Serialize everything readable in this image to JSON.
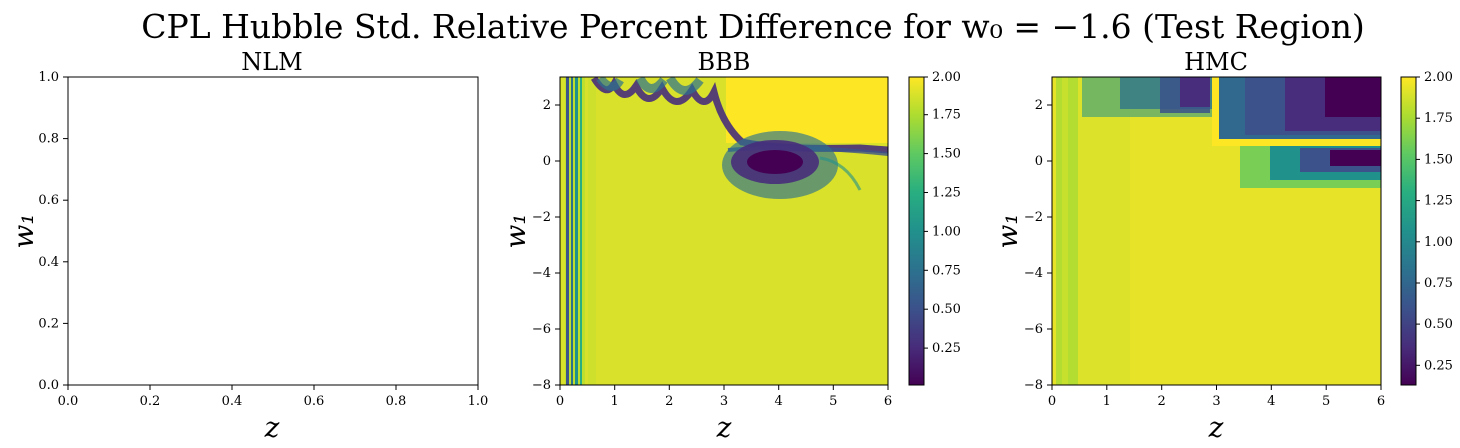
{
  "figure": {
    "suptitle": "CPL Hubble Std. Relative Percent Difference for w₀ = −1.6 (Test Region)"
  },
  "chart_data": [
    {
      "type": "heatmap",
      "title": "NLM",
      "xlabel": "z",
      "ylabel": "w₁",
      "xlim": [
        0,
        1
      ],
      "ylim": [
        0,
        1
      ],
      "xticks": [
        "0.0",
        "0.2",
        "0.4",
        "0.6",
        "0.8",
        "1.0"
      ],
      "yticks": [
        "0.0",
        "0.2",
        "0.4",
        "0.6",
        "0.8",
        "1.0"
      ],
      "empty": true
    },
    {
      "type": "heatmap",
      "title": "BBB",
      "xlabel": "z",
      "ylabel": "w₁",
      "xlim": [
        0,
        6
      ],
      "ylim": [
        -8,
        3
      ],
      "xticks": [
        "0",
        "1",
        "2",
        "3",
        "4",
        "5",
        "6"
      ],
      "yticks": [
        "−8",
        "−6",
        "−4",
        "−2",
        "0",
        "2"
      ],
      "colormap": "viridis",
      "colorbar": {
        "vmin": 0.02,
        "vmax": 2.0,
        "ticks": [
          "0.25",
          "0.50",
          "0.75",
          "1.00",
          "1.25",
          "1.50",
          "1.75",
          "2.00"
        ]
      },
      "background_value": 1.8,
      "features": [
        {
          "kind": "dark_band",
          "z": [
            0.1,
            0.45
          ],
          "w1": [
            -8,
            3
          ],
          "min_value": 0.4
        },
        {
          "kind": "saturated_block",
          "z": [
            3.0,
            6.0
          ],
          "w1": [
            0.7,
            3.0
          ],
          "value": 2.0
        },
        {
          "kind": "minimum_lobe",
          "center": [
            4.1,
            -0.1
          ],
          "min_value": 0.05
        },
        {
          "kind": "dark_arc",
          "z": [
            0.6,
            3.0
          ],
          "w1": [
            1.8,
            3.0
          ],
          "min_value": 0.1
        }
      ]
    },
    {
      "type": "heatmap",
      "title": "HMC",
      "xlabel": "z",
      "ylabel": "w₁",
      "xlim": [
        0,
        6
      ],
      "ylim": [
        -8,
        3
      ],
      "xticks": [
        "0",
        "1",
        "2",
        "3",
        "4",
        "5",
        "6"
      ],
      "yticks": [
        "−8",
        "−6",
        "−4",
        "−2",
        "0",
        "2"
      ],
      "colormap": "viridis",
      "colorbar": {
        "vmin": 0.13,
        "vmax": 2.0,
        "ticks": [
          "0.25",
          "0.50",
          "0.75",
          "1.00",
          "1.25",
          "1.50",
          "1.75",
          "2.00"
        ]
      },
      "background_value": 1.9,
      "features": [
        {
          "kind": "bright_ridge_vertical",
          "z": 3.0,
          "value": 2.0
        },
        {
          "kind": "bright_ridge_horizontal",
          "w1": 0.7,
          "value": 2.0
        },
        {
          "kind": "dark_region",
          "z": [
            0.5,
            3.0
          ],
          "w1": [
            1.2,
            3.0
          ],
          "min_value": 0.2
        },
        {
          "kind": "dark_region",
          "z": [
            3.0,
            6.0
          ],
          "w1": [
            1.2,
            3.0
          ],
          "min_value": 0.15
        },
        {
          "kind": "dark_region",
          "z": [
            3.5,
            6.0
          ],
          "w1": [
            -0.5,
            0.7
          ],
          "min_value": 0.15
        }
      ]
    }
  ]
}
